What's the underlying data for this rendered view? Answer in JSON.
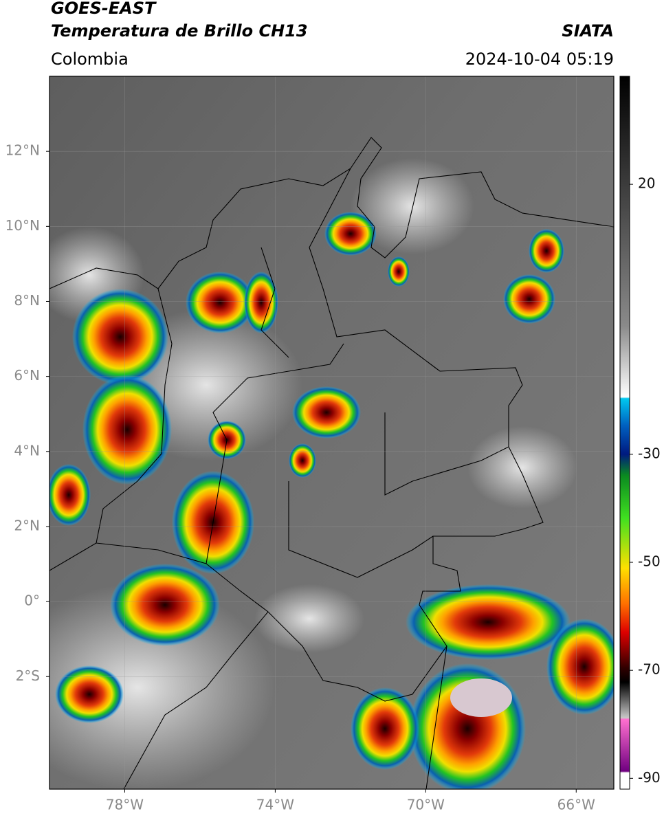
{
  "header": {
    "title": "GOES-EAST",
    "subtitle": "Temperatura de Brillo CH13",
    "source": "SIATA",
    "region": "Colombia",
    "datetime": "2024-10-04 05:19"
  },
  "map": {
    "xlim": [
      -80,
      -65
    ],
    "ylim": [
      -5,
      14
    ],
    "xticks": [
      {
        "value": -78,
        "label": "78°W"
      },
      {
        "value": -74,
        "label": "74°W"
      },
      {
        "value": -70,
        "label": "70°W"
      },
      {
        "value": -66,
        "label": "66°W"
      }
    ],
    "yticks": [
      {
        "value": 12,
        "label": "12°N"
      },
      {
        "value": 10,
        "label": "10°N"
      },
      {
        "value": 8,
        "label": "8°N"
      },
      {
        "value": 6,
        "label": "6°N"
      },
      {
        "value": 4,
        "label": "4°N"
      },
      {
        "value": 2,
        "label": "2°N"
      },
      {
        "value": 0,
        "label": "0°"
      },
      {
        "value": -2,
        "label": "2°S"
      }
    ]
  },
  "colorbar": {
    "lim": [
      -92,
      40
    ],
    "ticks": [
      20,
      -30,
      -50,
      -70,
      -90
    ]
  }
}
